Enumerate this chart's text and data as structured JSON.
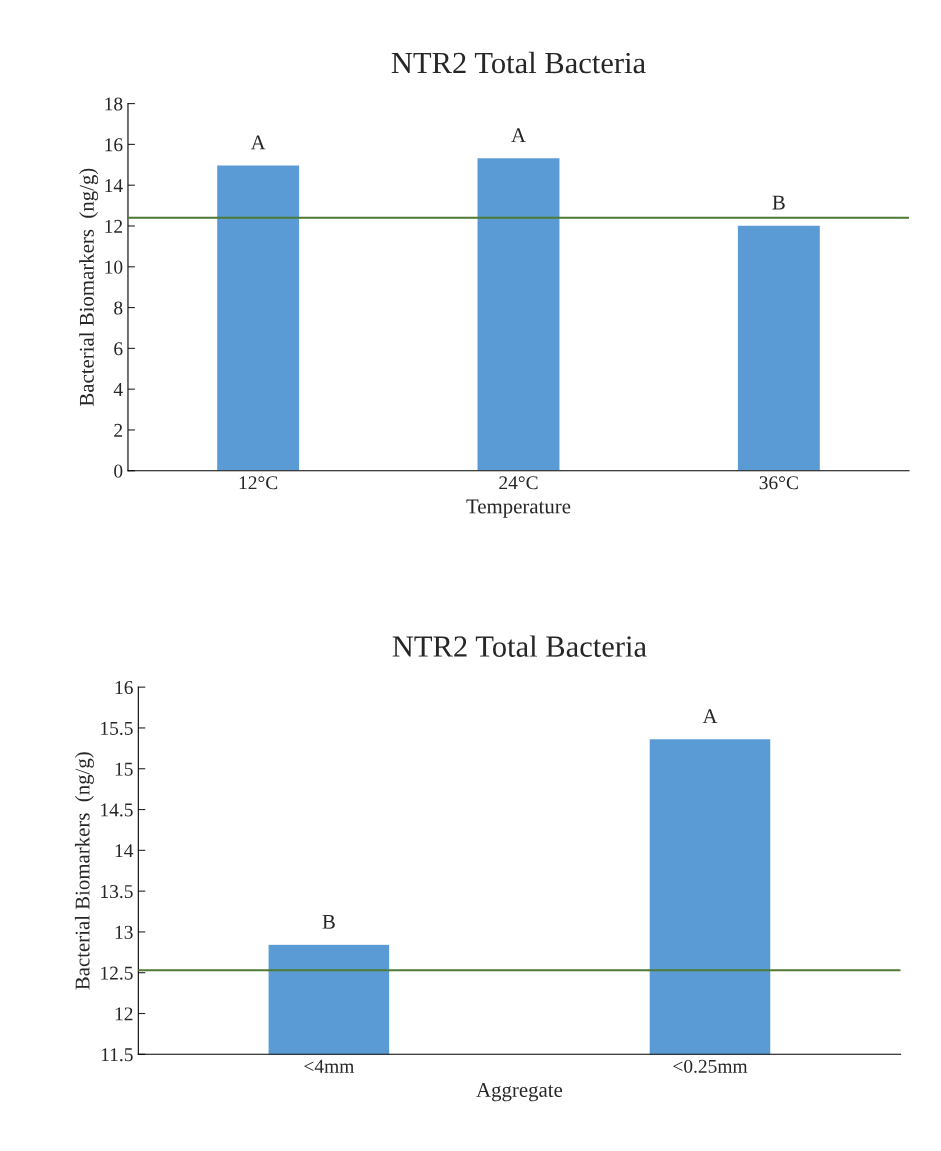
{
  "chart_data": [
    {
      "type": "bar",
      "title": "NTR2 Total Bacteria",
      "xlabel": "Temperature",
      "ylabel": "Bacterial Biomarkers  (ng/g)",
      "categories": [
        "12°C",
        "24°C",
        "36°C"
      ],
      "values": [
        15.0,
        15.35,
        12.05
      ],
      "color": "#5b9bd5",
      "ylim": [
        0,
        18
      ],
      "yticks": [
        0,
        2,
        4,
        6,
        8,
        10,
        12,
        14,
        16,
        18
      ],
      "grid": false,
      "ref_lines": [
        {
          "axis": "y",
          "value": 12.4,
          "color": "#4e7a36"
        }
      ],
      "annotations": [
        {
          "text": "A",
          "x": "12°C",
          "y": 15.0
        },
        {
          "text": "A",
          "x": "24°C",
          "y": 15.35
        },
        {
          "text": "B",
          "x": "36°C",
          "y": 12.05
        }
      ]
    },
    {
      "type": "bar",
      "title": "NTR2 Total Bacteria",
      "xlabel": "Aggregate",
      "ylabel": "Bacterial Biomarkers  (ng/g)",
      "categories": [
        "<4mm",
        "<0.25mm"
      ],
      "values": [
        12.85,
        15.37
      ],
      "color": "#5b9bd5",
      "ylim": [
        11.5,
        16
      ],
      "yticks": [
        11.5,
        12,
        12.5,
        13,
        13.5,
        14,
        14.5,
        15,
        15.5,
        16
      ],
      "grid": false,
      "ref_lines": [
        {
          "axis": "y",
          "value": 12.53,
          "color": "#4e7a36"
        }
      ],
      "annotations": [
        {
          "text": "B",
          "x": "<4mm",
          "y": 12.85
        },
        {
          "text": "A",
          "x": "<0.25mm",
          "y": 15.37
        }
      ]
    }
  ]
}
